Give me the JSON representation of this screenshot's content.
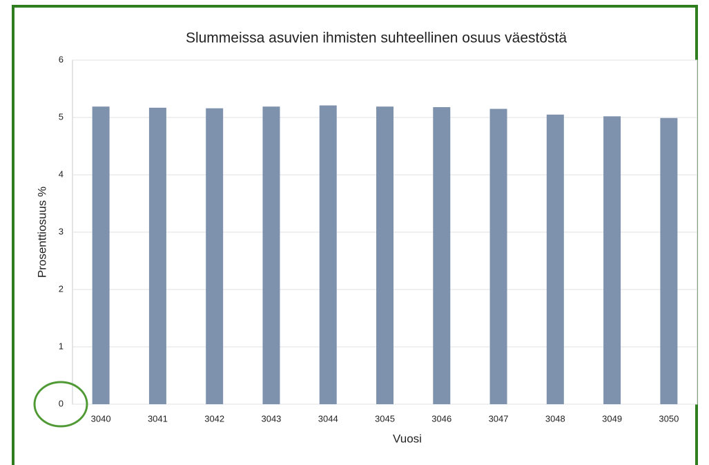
{
  "chart_data": {
    "type": "bar",
    "title": "Slummeissa asuvien ihmisten suhteellinen osuus väestöstä",
    "x_label": "Vuosi",
    "y_label": "Prosenttiosuus %",
    "categories": [
      "3040",
      "3041",
      "3042",
      "3043",
      "3044",
      "3045",
      "3046",
      "3047",
      "3048",
      "3049",
      "3050"
    ],
    "values": [
      5.19,
      5.17,
      5.16,
      5.19,
      5.21,
      5.19,
      5.18,
      5.15,
      5.05,
      5.02,
      4.99
    ],
    "color": "#7f92ad",
    "ylim": [
      0,
      6
    ],
    "yticks": [
      0,
      1,
      2,
      3,
      4,
      5,
      6
    ],
    "grid": true
  }
}
